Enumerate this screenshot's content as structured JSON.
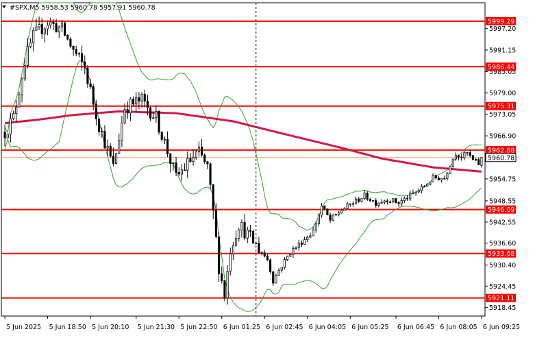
{
  "header": {
    "symbol_line": "#SPX,M5  5958.53 5960.78 5957.91 5960.78"
  },
  "chart_data": {
    "type": "candlestick",
    "symbol": "#SPX",
    "timeframe": "M5",
    "ohlc_header": {
      "open": 5958.53,
      "high": 5960.78,
      "low": 5957.91,
      "close": 5960.78
    },
    "last_price": 5960.78,
    "ylim": [
      5916.0,
      6004.5
    ],
    "y_ticks": [
      "5997.20",
      "5991.15",
      "5985.05",
      "5979.00",
      "5973.05",
      "5966.90",
      "5960.80",
      "5954.75",
      "5948.55",
      "5942.55",
      "5936.60",
      "5930.40",
      "5924.45",
      "5918.45"
    ],
    "x_ticks": [
      "5 Jun 2025",
      "5 Jun 18:50",
      "5 Jun 20:10",
      "5 Jun 21:30",
      "5 Jun 22:50",
      "6 Jun 01:25",
      "6 Jun 02:45",
      "6 Jun 04:05",
      "6 Jun 05:25",
      "6 Jun 06:45",
      "6 Jun 08:05",
      "6 Jun 09:25"
    ],
    "levels": [
      {
        "label": "5999.29",
        "value": 5999.29
      },
      {
        "label": "5986.44",
        "value": 5986.44
      },
      {
        "label": "5975.31",
        "value": 5975.31
      },
      {
        "label": "5962.88",
        "value": 5962.88
      },
      {
        "label": "5946.09",
        "value": 5946.09
      },
      {
        "label": "5933.68",
        "value": 5933.68
      },
      {
        "label": "5921.11",
        "value": 5921.11
      }
    ],
    "separator_index": 88,
    "colors": {
      "level_line": "#ff0000",
      "moving_average": "#d01846",
      "bollinger": "#2ea02e",
      "candle": "#000000",
      "bid_line": "#f0a070"
    },
    "candles": [],
    "moving_average": [],
    "bollinger_upper": [],
    "bollinger_lower": []
  }
}
